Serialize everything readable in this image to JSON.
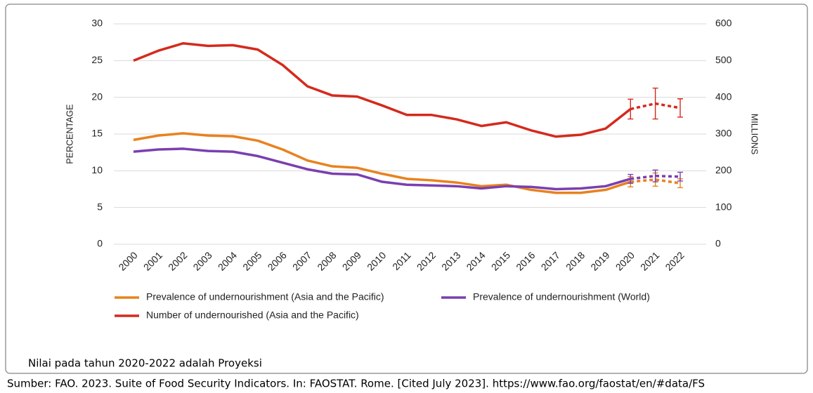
{
  "chart_data": {
    "type": "line",
    "categories": [
      "2000",
      "2001",
      "2002",
      "2003",
      "2004",
      "2005",
      "2006",
      "2007",
      "2008",
      "2009",
      "2010",
      "2011",
      "2012",
      "2013",
      "2014",
      "2015",
      "2016",
      "2017",
      "2018",
      "2019",
      "2020",
      "2021",
      "2022"
    ],
    "ylabel": "PERCENTAGE",
    "y2label": "MILLIONS",
    "ylim": [
      0,
      30
    ],
    "yticks": [
      0,
      5,
      10,
      15,
      20,
      25,
      30
    ],
    "y2lim": [
      0,
      600
    ],
    "y2ticks": [
      0,
      100,
      200,
      300,
      400,
      500,
      600
    ],
    "grid": true,
    "projection_from": "2020",
    "series": [
      {
        "name": "Prevalence of undernourishment (Asia and the Pacific)",
        "color": "#e8821e",
        "values": [
          14.2,
          14.8,
          15.1,
          14.8,
          14.7,
          14.1,
          12.9,
          11.4,
          10.6,
          10.4,
          9.6,
          8.9,
          8.7,
          8.4,
          7.9,
          8.1,
          7.4,
          7.0,
          7.0,
          7.4,
          8.5,
          8.8,
          8.3
        ],
        "errors": [
          null,
          null,
          null,
          null,
          null,
          null,
          null,
          null,
          null,
          null,
          null,
          null,
          null,
          null,
          null,
          null,
          null,
          null,
          null,
          null,
          0.7,
          0.9,
          0.6
        ]
      },
      {
        "name": "Prevalence of undernourishment (World)",
        "color": "#7a3fb0",
        "values": [
          12.6,
          12.9,
          13.0,
          12.7,
          12.6,
          12.0,
          11.1,
          10.2,
          9.6,
          9.5,
          8.5,
          8.1,
          8.0,
          7.9,
          7.6,
          7.9,
          7.8,
          7.5,
          7.6,
          7.9,
          8.9,
          9.3,
          9.2
        ],
        "errors": [
          null,
          null,
          null,
          null,
          null,
          null,
          null,
          null,
          null,
          null,
          null,
          null,
          null,
          null,
          null,
          null,
          null,
          null,
          null,
          null,
          0.6,
          0.8,
          0.6
        ]
      },
      {
        "name": "Number of undernourished (Asia and the Pacific)",
        "color": "#d42a1d",
        "axis": "y2",
        "values": [
          500,
          527,
          547,
          540,
          542,
          530,
          488,
          430,
          405,
          402,
          378,
          352,
          352,
          340,
          322,
          332,
          310,
          293,
          298,
          315,
          368,
          383,
          371
        ],
        "errors": [
          null,
          null,
          null,
          null,
          null,
          null,
          null,
          null,
          null,
          null,
          null,
          null,
          null,
          null,
          null,
          null,
          null,
          null,
          null,
          null,
          27,
          42,
          25
        ]
      }
    ]
  },
  "notes": [
    "Nilai pada tahun 2020-2022 adalah Proyeksi",
    "Sumber:  FAO. 2023. Suite of Food Security Indicators. In: FAOSTAT. Rome. [Cited July 2023]. https://www.fao.org/faostat/en/#data/FS"
  ]
}
